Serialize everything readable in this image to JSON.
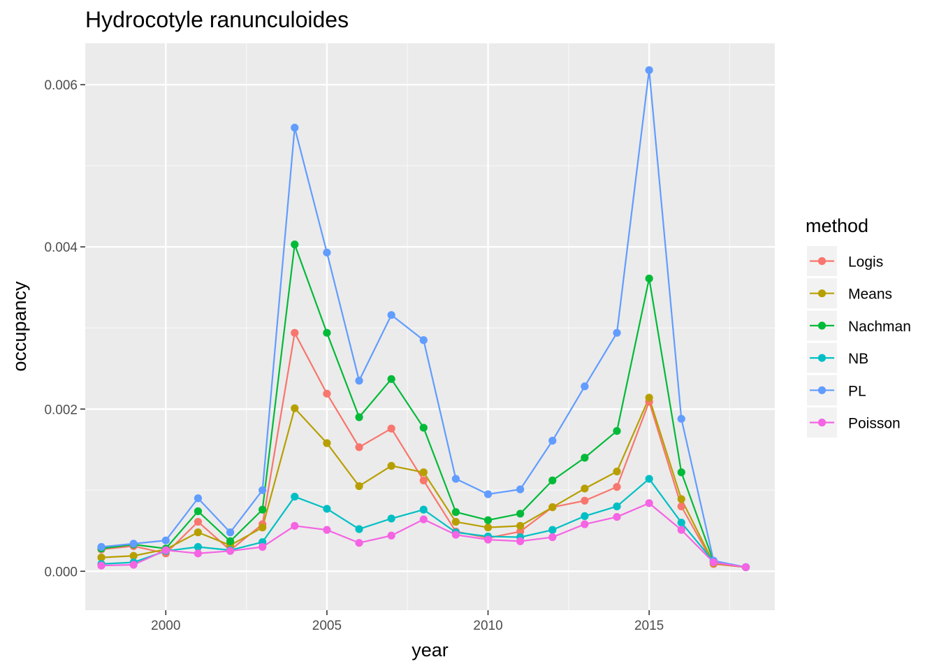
{
  "chart_data": {
    "type": "line",
    "title": "Hydrocotyle ranunculoides",
    "xlabel": "year",
    "ylabel": "occupancy",
    "x": [
      1998,
      1999,
      2000,
      2001,
      2002,
      2003,
      2004,
      2005,
      2006,
      2007,
      2008,
      2009,
      2010,
      2011,
      2012,
      2013,
      2014,
      2015,
      2016,
      2017,
      2018
    ],
    "xlim": [
      1997.5,
      2018.9
    ],
    "ylim": [
      -0.00048,
      0.00651
    ],
    "x_ticks": [
      2000,
      2005,
      2010,
      2015
    ],
    "x_tick_labels": [
      "2000",
      "2005",
      "2010",
      "2015"
    ],
    "y_ticks": [
      0,
      0.002,
      0.004,
      0.006
    ],
    "y_tick_labels": [
      "0.000",
      "0.002",
      "0.004",
      "0.006"
    ],
    "grid": true,
    "legend": {
      "title": "method",
      "position": "right"
    },
    "series": [
      {
        "name": "Logis",
        "color": "#F8766D",
        "values": [
          0.00027,
          0.00031,
          0.00022,
          0.00061,
          0.00026,
          0.00058,
          0.00294,
          0.00219,
          0.00153,
          0.00176,
          0.00112,
          0.00049,
          0.00041,
          0.00049,
          0.00079,
          0.00087,
          0.00104,
          0.00209,
          0.0008,
          9e-05,
          5e-05
        ]
      },
      {
        "name": "Means",
        "color": "#B79F00",
        "values": [
          0.00017,
          0.00019,
          0.00027,
          0.00048,
          0.00032,
          0.00054,
          0.00201,
          0.00158,
          0.00105,
          0.0013,
          0.00122,
          0.00061,
          0.00054,
          0.00056,
          0.00079,
          0.00102,
          0.00123,
          0.00214,
          0.00089,
          0.0001,
          5e-05
        ]
      },
      {
        "name": "Nachman",
        "color": "#00BA38",
        "values": [
          0.00028,
          0.00033,
          0.00028,
          0.00074,
          0.00037,
          0.00076,
          0.00403,
          0.00294,
          0.0019,
          0.00237,
          0.00177,
          0.00073,
          0.00063,
          0.00071,
          0.00112,
          0.0014,
          0.00173,
          0.00361,
          0.00122,
          0.00012,
          5e-05
        ]
      },
      {
        "name": "NB",
        "color": "#00BFC4",
        "values": [
          9e-05,
          0.00011,
          0.00025,
          0.0003,
          0.00026,
          0.00036,
          0.00092,
          0.00077,
          0.00052,
          0.00065,
          0.00076,
          0.00048,
          0.00043,
          0.00042,
          0.00051,
          0.00068,
          0.0008,
          0.00114,
          0.0006,
          0.00012,
          5e-05
        ]
      },
      {
        "name": "PL",
        "color": "#619CFF",
        "values": [
          0.0003,
          0.00034,
          0.00038,
          0.0009,
          0.00048,
          0.001,
          0.00547,
          0.00393,
          0.00235,
          0.00316,
          0.00285,
          0.00114,
          0.00095,
          0.00101,
          0.00161,
          0.00228,
          0.00294,
          0.00618,
          0.00188,
          0.00013,
          5e-05
        ]
      },
      {
        "name": "Poisson",
        "color": "#F564E3",
        "values": [
          7e-05,
          8e-05,
          0.00026,
          0.00022,
          0.00025,
          0.0003,
          0.00056,
          0.00051,
          0.00035,
          0.00044,
          0.00064,
          0.00045,
          0.00039,
          0.00037,
          0.00042,
          0.00058,
          0.00067,
          0.00084,
          0.00051,
          0.00011,
          5e-05
        ]
      }
    ]
  }
}
